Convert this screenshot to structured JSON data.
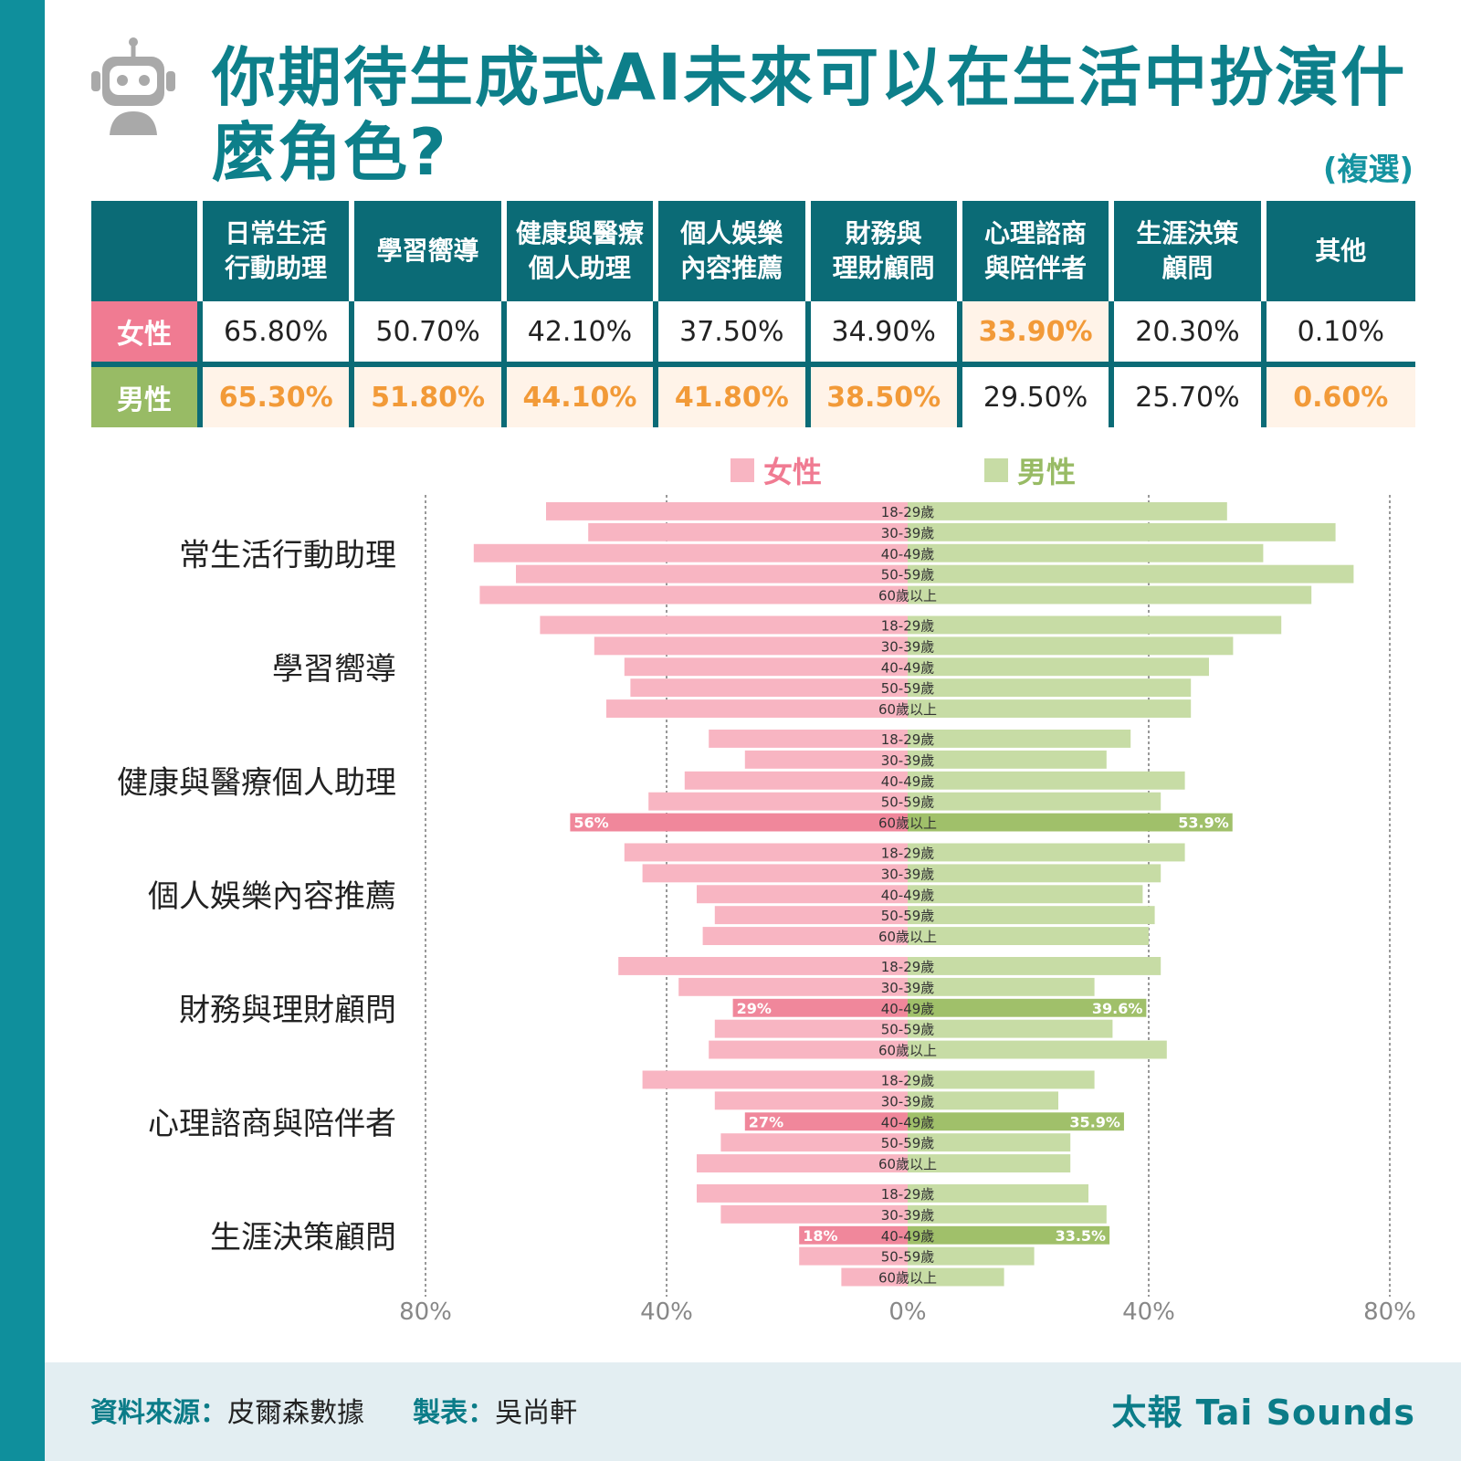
{
  "title": "你期待生成式AI未來可以在生活中扮演什麼角色?",
  "note": "(複選)",
  "table": {
    "headers": [
      [
        "日常生活",
        "行動助理"
      ],
      [
        "學習嚮導"
      ],
      [
        "健康與醫療",
        "個人助理"
      ],
      [
        "個人娛樂",
        "內容推薦"
      ],
      [
        "財務與",
        "理財顧問"
      ],
      [
        "心理諮商",
        "與陪伴者"
      ],
      [
        "生涯決策",
        "顧問"
      ],
      [
        "其他"
      ]
    ],
    "female": {
      "label": "女性",
      "values": [
        "65.80%",
        "50.70%",
        "42.10%",
        "37.50%",
        "34.90%",
        "33.90%",
        "20.30%",
        "0.10%"
      ],
      "highlight": [
        false,
        false,
        false,
        false,
        false,
        true,
        false,
        false
      ]
    },
    "male": {
      "label": "男性",
      "values": [
        "65.30%",
        "51.80%",
        "44.10%",
        "41.80%",
        "38.50%",
        "29.50%",
        "25.70%",
        "0.60%"
      ],
      "highlight": [
        true,
        true,
        true,
        true,
        true,
        false,
        false,
        true
      ]
    }
  },
  "legend": {
    "female": "女性",
    "male": "男性"
  },
  "colors": {
    "teal": "#0f8f9c",
    "female_bar": "#f8b5c2",
    "female_highlight": "#f0879b",
    "male_bar": "#c7dca5",
    "male_highlight": "#a0c06a",
    "highlight_text": "#f29a38"
  },
  "chart_data": {
    "type": "bar",
    "orientation": "diverging-horizontal",
    "age_groups": [
      "18-29歲",
      "30-39歲",
      "40-49歲",
      "50-59歲",
      "60歲以上"
    ],
    "categories": [
      "常生活行動助理",
      "學習嚮導",
      "健康與醫療個人助理",
      "個人娛樂內容推薦",
      "財務與理財顧問",
      "心理諮商與陪伴者",
      "生涯決策顧問"
    ],
    "x_ticks": [
      "80%",
      "40%",
      "0%",
      "40%",
      "80%"
    ],
    "xlim": [
      -80,
      80
    ],
    "series": [
      {
        "name": "女性",
        "values": [
          [
            60,
            53,
            72,
            65,
            71
          ],
          [
            61,
            52,
            47,
            46,
            50
          ],
          [
            33,
            27,
            37,
            43,
            56
          ],
          [
            47,
            44,
            35,
            32,
            34
          ],
          [
            48,
            38,
            29,
            32,
            33
          ],
          [
            44,
            32,
            27,
            31,
            35
          ],
          [
            35,
            31,
            18,
            18,
            11
          ]
        ]
      },
      {
        "name": "男性",
        "values": [
          [
            53,
            71,
            59,
            74,
            67
          ],
          [
            62,
            54,
            50,
            47,
            47
          ],
          [
            37,
            33,
            46,
            42,
            53.9
          ],
          [
            46,
            42,
            39,
            41,
            40
          ],
          [
            42,
            31,
            39.6,
            34,
            43
          ],
          [
            31,
            25,
            35.9,
            27,
            27
          ],
          [
            30,
            33,
            33.5,
            21,
            16
          ]
        ]
      }
    ],
    "annotations": [
      {
        "category": 2,
        "age": 4,
        "female": "56%",
        "male": "53.9%"
      },
      {
        "category": 4,
        "age": 2,
        "female": "29%",
        "male": "39.6%"
      },
      {
        "category": 5,
        "age": 2,
        "female": "27%",
        "male": "35.9%"
      },
      {
        "category": 6,
        "age": 2,
        "female": "18%",
        "male": "33.5%"
      }
    ]
  },
  "footer": {
    "source_label": "資料來源：",
    "source": "皮爾森數據",
    "maker_label": "製表：",
    "maker": "吳尚軒",
    "brand": "太報 Tai Sounds"
  }
}
